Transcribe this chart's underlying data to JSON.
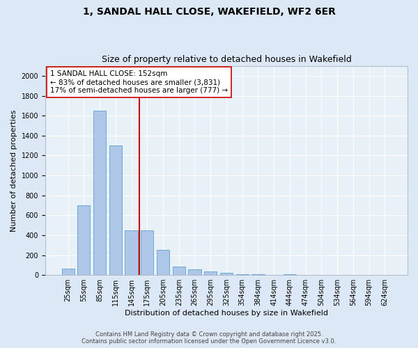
{
  "title_line1": "1, SANDAL HALL CLOSE, WAKEFIELD, WF2 6ER",
  "title_line2": "Size of property relative to detached houses in Wakefield",
  "xlabel": "Distribution of detached houses by size in Wakefield",
  "ylabel": "Number of detached properties",
  "categories": [
    "25sqm",
    "55sqm",
    "85sqm",
    "115sqm",
    "145sqm",
    "175sqm",
    "205sqm",
    "235sqm",
    "265sqm",
    "295sqm",
    "325sqm",
    "354sqm",
    "384sqm",
    "414sqm",
    "444sqm",
    "474sqm",
    "504sqm",
    "534sqm",
    "564sqm",
    "594sqm",
    "624sqm"
  ],
  "values": [
    65,
    700,
    1650,
    1300,
    450,
    450,
    255,
    85,
    55,
    35,
    20,
    10,
    10,
    0,
    10,
    0,
    0,
    0,
    0,
    0,
    0
  ],
  "bar_color": "#aec6e8",
  "bar_edgecolor": "#6aaad4",
  "vline_x": 4.5,
  "vline_color": "#cc0000",
  "annotation_text": "1 SANDAL HALL CLOSE: 152sqm\n← 83% of detached houses are smaller (3,831)\n17% of semi-detached houses are larger (777) →",
  "annotation_box_facecolor": "#ffffff",
  "annotation_box_edgecolor": "#cc0000",
  "ylim": [
    0,
    2100
  ],
  "yticks": [
    0,
    200,
    400,
    600,
    800,
    1000,
    1200,
    1400,
    1600,
    1800,
    2000
  ],
  "footer_line1": "Contains HM Land Registry data © Crown copyright and database right 2025.",
  "footer_line2": "Contains public sector information licensed under the Open Government Licence v3.0.",
  "bg_color": "#dce8f5",
  "plot_bg_color": "#e8f0f8",
  "grid_color": "#ffffff",
  "title_fontsize": 10,
  "subtitle_fontsize": 9,
  "xlabel_fontsize": 8,
  "ylabel_fontsize": 8,
  "tick_fontsize": 7,
  "footer_fontsize": 6,
  "annot_fontsize": 7.5
}
